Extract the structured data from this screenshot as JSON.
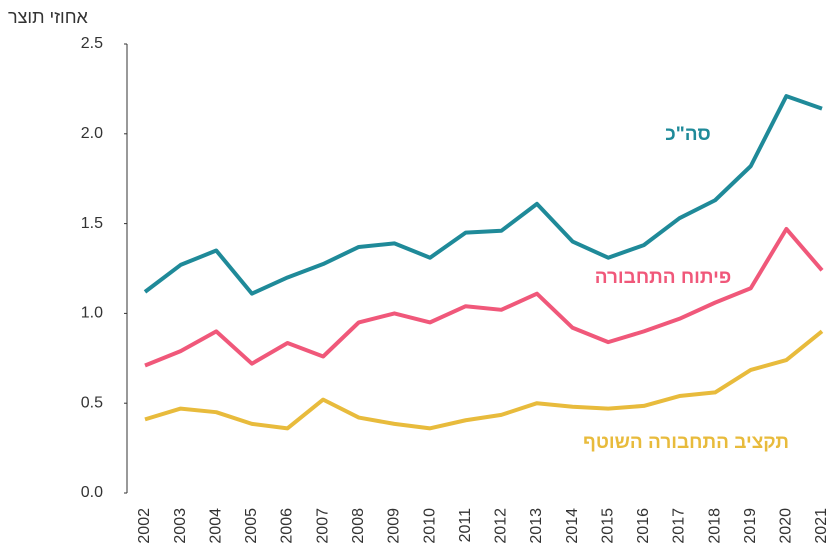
{
  "chart_data": {
    "type": "line",
    "y_label": "אחוזי תוצר",
    "categories": [
      "2002",
      "2003",
      "2004",
      "2005",
      "2006",
      "2007",
      "2008",
      "2009",
      "2010",
      "2011",
      "2012",
      "2013",
      "2014",
      "2015",
      "2016",
      "2017",
      "2018",
      "2019",
      "2020",
      "2021"
    ],
    "series": [
      {
        "name": "סה\"כ",
        "color": "#1f8a99",
        "values": [
          1.12,
          1.27,
          1.35,
          1.11,
          1.2,
          1.275,
          1.37,
          1.39,
          1.31,
          1.45,
          1.46,
          1.61,
          1.4,
          1.31,
          1.38,
          1.53,
          1.63,
          1.82,
          2.21,
          2.14
        ]
      },
      {
        "name": "פיתוח התחבורה",
        "color": "#f0587a",
        "values": [
          0.71,
          0.79,
          0.9,
          0.72,
          0.835,
          0.76,
          0.95,
          1.0,
          0.95,
          1.04,
          1.02,
          1.11,
          0.92,
          0.84,
          0.9,
          0.97,
          1.06,
          1.14,
          1.47,
          1.24
        ]
      },
      {
        "name": "תקציב התחבורה השוטף",
        "color": "#e8bb3c",
        "values": [
          0.41,
          0.47,
          0.45,
          0.385,
          0.36,
          0.52,
          0.42,
          0.385,
          0.36,
          0.405,
          0.435,
          0.5,
          0.48,
          0.47,
          0.485,
          0.54,
          0.56,
          0.685,
          0.74,
          0.9
        ]
      }
    ],
    "ylim": [
      0,
      2.5
    ],
    "yticks": [
      {
        "value": 0,
        "label": "0.0"
      },
      0.5,
      {
        "value": 1,
        "label": "1.0"
      },
      1.5,
      {
        "value": 2,
        "label": "2.0"
      },
      2.5
    ],
    "grid": false
  }
}
